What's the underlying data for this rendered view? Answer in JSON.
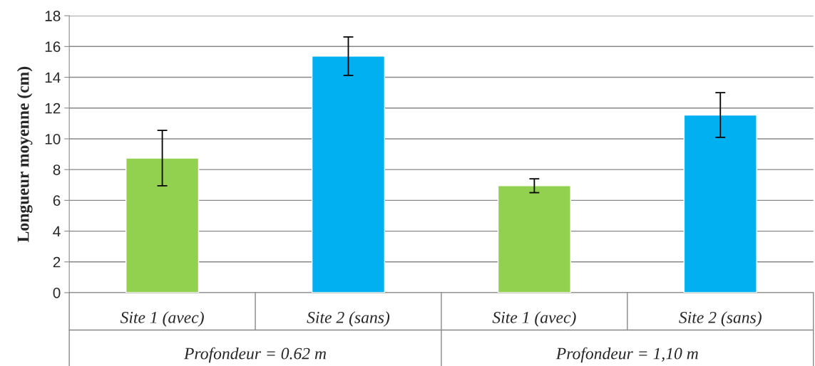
{
  "chart_data": {
    "type": "bar",
    "ylabel": "Longueur moyenne (cm)",
    "categories": [
      "Site 1 (avec)",
      "Site 2 (sans)",
      "Site 1 (avec)",
      "Site 2 (sans)"
    ],
    "values": [
      8.75,
      15.37,
      6.95,
      11.55
    ],
    "colors": [
      "#92d050",
      "#00b0f0",
      "#92d050",
      "#00b0f0"
    ],
    "errors": [
      1.8,
      1.25,
      0.45,
      1.45
    ],
    "annotations": [
      "Profondeur = 0.62 m",
      "Profondeur = 1,10 m"
    ],
    "ylim": [
      0,
      18
    ],
    "yticks": [
      0,
      2,
      4,
      6,
      8,
      10,
      12,
      14,
      16,
      18
    ],
    "grid": "y"
  }
}
